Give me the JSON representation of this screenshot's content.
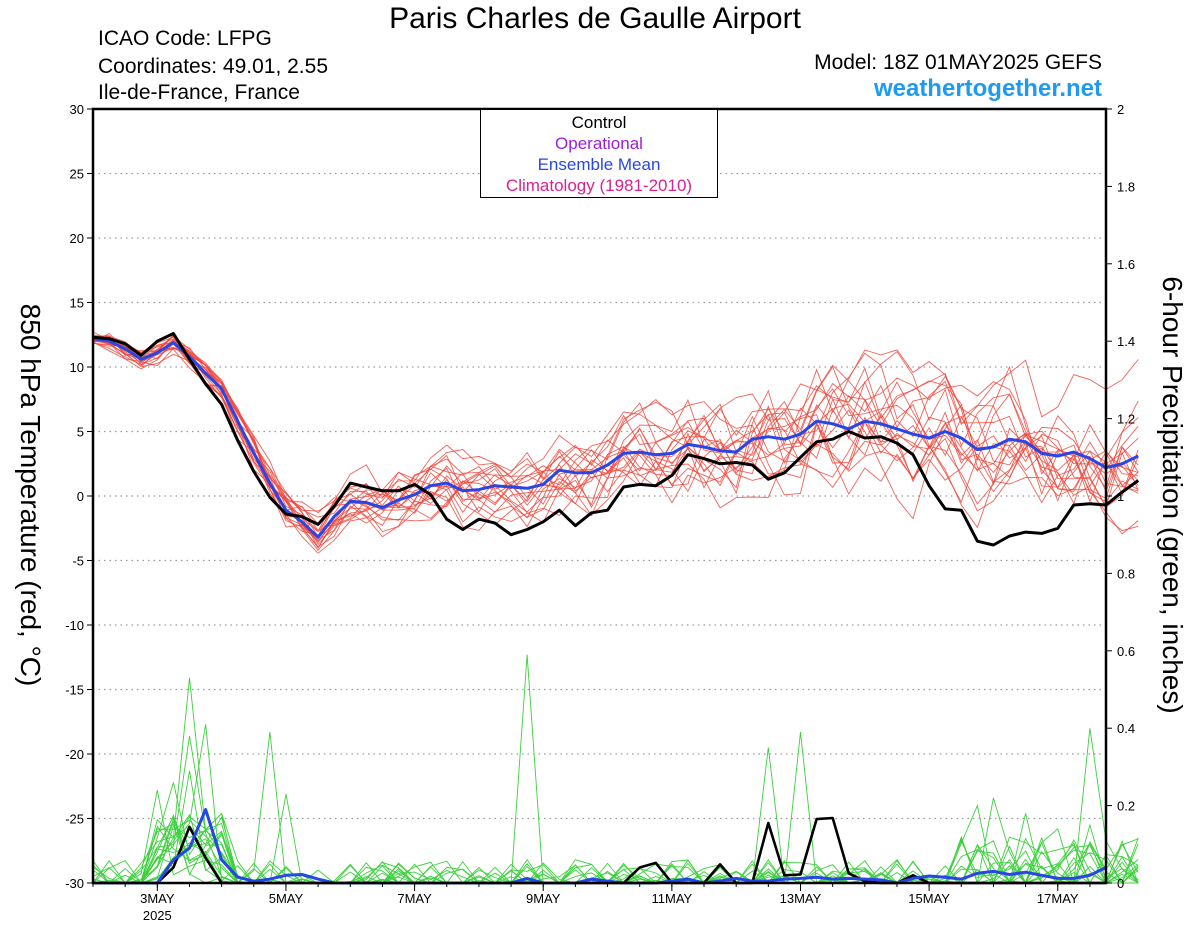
{
  "header": {
    "title": "Paris Charles de Gaulle Airport",
    "icao": "ICAO Code: LFPG",
    "coordinates": "Coordinates: 49.01, 2.55",
    "region": "Ile-de-France, France",
    "model": "Model: 18Z 01MAY2025 GEFS",
    "website": "weathertogether.net"
  },
  "chart_data": {
    "type": "line",
    "title": "Paris Charles de Gaulle Airport",
    "ylabel_left": "850 hPa Temperature (red, °C)",
    "ylabel_right": "6-hour Precipitation (green, inches)",
    "ylim_left": [
      -30,
      30
    ],
    "ylim_right": [
      0,
      2
    ],
    "x_unit": "days since 01MAY2025 18Z",
    "xlim": [
      0.25,
      16.0
    ],
    "xticks": [
      {
        "x": 1.25,
        "label": "3MAY",
        "sublabel": "2025"
      },
      {
        "x": 3.25,
        "label": "5MAY"
      },
      {
        "x": 5.25,
        "label": "7MAY"
      },
      {
        "x": 7.25,
        "label": "9MAY"
      },
      {
        "x": 9.25,
        "label": "11MAY"
      },
      {
        "x": 11.25,
        "label": "13MAY"
      },
      {
        "x": 13.25,
        "label": "15MAY"
      },
      {
        "x": 15.25,
        "label": "17MAY"
      }
    ],
    "yticks_left": [
      -30,
      -25,
      -20,
      -15,
      -10,
      -5,
      0,
      5,
      10,
      15,
      20,
      25,
      30
    ],
    "yticks_right": [
      0,
      0.2,
      0.4,
      0.6,
      0.8,
      1,
      1.2,
      1.4,
      1.6,
      1.8,
      2
    ],
    "grid": "dotted horizontal",
    "legend": {
      "position": "top-center",
      "entries": [
        {
          "label": "Control",
          "color": "#000000"
        },
        {
          "label": "Operational",
          "color": "#9a1ee0"
        },
        {
          "label": "Ensemble Mean",
          "color": "#2846e6"
        },
        {
          "label": "Climatology (1981-2010)",
          "color": "#e0208c"
        }
      ]
    },
    "time_step_days": 0.25,
    "series": [
      {
        "name": "Control",
        "axis": "left",
        "color": "#000000",
        "values": [
          12.3,
          12.2,
          11.8,
          10.9,
          12.0,
          12.6,
          10.6,
          8.7,
          7.1,
          4.3,
          1.9,
          -0.1,
          -1.4,
          -1.6,
          -2.2,
          -0.8,
          1.0,
          0.7,
          0.4,
          0.4,
          0.9,
          0.1,
          -1.8,
          -2.6,
          -1.8,
          -2.1,
          -3.0,
          -2.6,
          -2.0,
          -1.1,
          -2.3,
          -1.3,
          -1.1,
          0.7,
          0.9,
          0.8,
          1.6,
          3.2,
          2.9,
          2.5,
          2.6,
          2.4,
          1.3,
          1.8,
          3.0,
          4.2,
          4.4,
          5.0,
          4.5,
          4.6,
          4.1,
          3.2,
          0.8,
          -1.0,
          -1.1,
          -3.5,
          -3.8,
          -3.1,
          -2.8,
          -2.9,
          -2.5,
          -0.7,
          -0.6,
          -0.7,
          0.3,
          1.2
        ]
      },
      {
        "name": "Ensemble Mean",
        "axis": "left",
        "color": "#2846e6",
        "values": [
          12.2,
          12.0,
          11.4,
          10.6,
          11.1,
          11.9,
          10.8,
          9.5,
          8.3,
          5.8,
          3.3,
          1.0,
          -1.1,
          -2.0,
          -3.2,
          -1.6,
          -0.4,
          -0.5,
          -0.9,
          -0.3,
          0.1,
          0.8,
          1.0,
          0.4,
          0.5,
          0.8,
          0.7,
          0.6,
          0.9,
          2.0,
          1.8,
          1.8,
          2.4,
          3.3,
          3.4,
          3.2,
          3.3,
          4.0,
          3.8,
          3.5,
          3.4,
          4.4,
          4.6,
          4.4,
          4.8,
          5.8,
          5.6,
          5.2,
          5.8,
          5.6,
          5.2,
          4.8,
          4.5,
          5.0,
          4.5,
          3.6,
          3.8,
          4.4,
          4.2,
          3.3,
          3.1,
          3.4,
          2.9,
          2.2,
          2.5,
          3.1
        ]
      }
    ],
    "members_temperature": {
      "axis": "left",
      "color": "#f0463c",
      "note": "ensemble members (thin red lines), generated as spread around the ensemble mean"
    },
    "precipitation": {
      "axis": "right",
      "control": {
        "name": "Control",
        "color": "#000000",
        "points": [
          [
            1.25,
            0.0
          ],
          [
            1.5,
            0.04
          ],
          [
            1.75,
            0.145
          ],
          [
            2.0,
            0.065
          ],
          [
            2.25,
            0.0
          ],
          [
            2.5,
            0.0
          ],
          [
            5.0,
            0.0
          ],
          [
            8.5,
            0.0
          ],
          [
            8.75,
            0.04
          ],
          [
            9.0,
            0.052
          ],
          [
            9.25,
            0.0
          ],
          [
            9.5,
            0.0
          ],
          [
            9.75,
            0.0
          ],
          [
            10.0,
            0.048
          ],
          [
            10.25,
            0.0
          ],
          [
            10.5,
            0.0
          ],
          [
            10.75,
            0.155
          ],
          [
            11.0,
            0.02
          ],
          [
            11.25,
            0.022
          ],
          [
            11.5,
            0.165
          ],
          [
            11.75,
            0.168
          ],
          [
            12.0,
            0.025
          ],
          [
            12.25,
            0.005
          ],
          [
            12.5,
            0.0
          ],
          [
            12.75,
            0.0
          ],
          [
            13.0,
            0.02
          ],
          [
            13.25,
            0.0
          ],
          [
            13.5,
            0.0
          ],
          [
            14.0,
            0.0
          ],
          [
            14.75,
            0.0
          ],
          [
            15.0,
            0.0
          ],
          [
            15.5,
            0.0
          ],
          [
            16.0,
            0.0
          ]
        ]
      },
      "mean": {
        "name": "Ensemble Mean",
        "color": "#2846e6",
        "points": [
          [
            0.25,
            0.0
          ],
          [
            1.0,
            0.0
          ],
          [
            1.25,
            0.0
          ],
          [
            1.5,
            0.06
          ],
          [
            1.75,
            0.09
          ],
          [
            2.0,
            0.19
          ],
          [
            2.25,
            0.06
          ],
          [
            2.5,
            0.015
          ],
          [
            2.75,
            0.005
          ],
          [
            3.0,
            0.01
          ],
          [
            3.25,
            0.02
          ],
          [
            3.5,
            0.022
          ],
          [
            3.75,
            0.01
          ],
          [
            4.0,
            0.0
          ],
          [
            5.0,
            0.0
          ],
          [
            6.0,
            0.0
          ],
          [
            6.75,
            0.0
          ],
          [
            7.0,
            0.012
          ],
          [
            7.25,
            0.0
          ],
          [
            7.75,
            0.0
          ],
          [
            8.0,
            0.01
          ],
          [
            8.25,
            0.005
          ],
          [
            8.5,
            0.0
          ],
          [
            9.0,
            0.0
          ],
          [
            9.5,
            0.01
          ],
          [
            9.75,
            0.0
          ],
          [
            10.0,
            0.005
          ],
          [
            10.25,
            0.012
          ],
          [
            10.5,
            0.005
          ],
          [
            10.75,
            0.005
          ],
          [
            11.0,
            0.01
          ],
          [
            11.25,
            0.012
          ],
          [
            11.5,
            0.015
          ],
          [
            11.75,
            0.01
          ],
          [
            12.0,
            0.012
          ],
          [
            12.5,
            0.008
          ],
          [
            12.75,
            0.0
          ],
          [
            13.0,
            0.012
          ],
          [
            13.25,
            0.018
          ],
          [
            13.5,
            0.015
          ],
          [
            13.75,
            0.01
          ],
          [
            14.0,
            0.025
          ],
          [
            14.25,
            0.03
          ],
          [
            14.5,
            0.022
          ],
          [
            14.75,
            0.028
          ],
          [
            15.0,
            0.02
          ],
          [
            15.25,
            0.012
          ],
          [
            15.5,
            0.012
          ],
          [
            15.75,
            0.02
          ],
          [
            16.0,
            0.04
          ]
        ]
      },
      "members": {
        "color": "#3cd03c",
        "note": "ensemble members (thin green lines)",
        "peaks": [
          {
            "x": 1.75,
            "value": 0.53
          },
          {
            "x": 1.75,
            "value": 0.38
          },
          {
            "x": 1.75,
            "value": 0.29
          },
          {
            "x": 1.5,
            "value": 0.26
          },
          {
            "x": 1.25,
            "value": 0.24
          },
          {
            "x": 2.0,
            "value": 0.41
          },
          {
            "x": 3.0,
            "value": 0.39
          },
          {
            "x": 3.25,
            "value": 0.23
          },
          {
            "x": 7.0,
            "value": 0.59
          },
          {
            "x": 10.75,
            "value": 0.35
          },
          {
            "x": 11.25,
            "value": 0.39
          },
          {
            "x": 15.75,
            "value": 0.4
          },
          {
            "x": 15.75,
            "value": 0.15
          },
          {
            "x": 14.25,
            "value": 0.22
          },
          {
            "x": 14.0,
            "value": 0.2
          },
          {
            "x": 14.75,
            "value": 0.18
          },
          {
            "x": 15.25,
            "value": 0.14
          }
        ]
      }
    }
  }
}
